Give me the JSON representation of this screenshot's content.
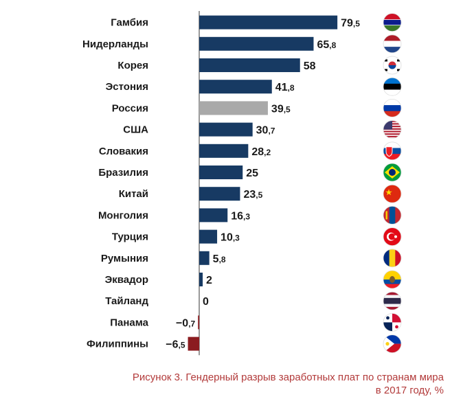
{
  "chart_data": {
    "type": "bar",
    "orientation": "horizontal",
    "categories": [
      "Гамбия",
      "Нидерланды",
      "Корея",
      "Эстония",
      "Россия",
      "США",
      "Словакия",
      "Бразилия",
      "Китай",
      "Монголия",
      "Турция",
      "Румыния",
      "Эквадор",
      "Тайланд",
      "Панама",
      "Филиппины"
    ],
    "values": [
      79.5,
      65.8,
      58,
      41.8,
      39.5,
      30.7,
      28.2,
      25,
      23.5,
      16.3,
      10.3,
      5.8,
      2,
      0,
      -0.7,
      -6.5
    ],
    "value_labels": [
      {
        "int": "79",
        "frac": ",5"
      },
      {
        "int": "65",
        "frac": ",8"
      },
      {
        "int": "58",
        "frac": ""
      },
      {
        "int": "41",
        "frac": ",8"
      },
      {
        "int": "39",
        "frac": ",5"
      },
      {
        "int": "30",
        "frac": ",7"
      },
      {
        "int": "28",
        "frac": ",2"
      },
      {
        "int": "25",
        "frac": ""
      },
      {
        "int": "23",
        "frac": ",5"
      },
      {
        "int": "16",
        "frac": ",3"
      },
      {
        "int": "10",
        "frac": ",3"
      },
      {
        "int": "5",
        "frac": ",8"
      },
      {
        "int": "2",
        "frac": ""
      },
      {
        "int": "0",
        "frac": ""
      },
      {
        "int": "−0",
        "frac": ",7"
      },
      {
        "int": "−6",
        "frac": ",5"
      }
    ],
    "flags": [
      "gambia-flag-icon",
      "netherlands-flag-icon",
      "korea-flag-icon",
      "estonia-flag-icon",
      "russia-flag-icon",
      "usa-flag-icon",
      "slovakia-flag-icon",
      "brazil-flag-icon",
      "china-flag-icon",
      "mongolia-flag-icon",
      "turkey-flag-icon",
      "romania-flag-icon",
      "ecuador-flag-icon",
      "thailand-flag-icon",
      "panama-flag-icon",
      "philippines-flag-icon"
    ],
    "highlight_category": "Россия",
    "colors": {
      "positive": "#173a63",
      "highlight": "#a9a9a9",
      "negative": "#8b1c20",
      "axis": "#333333"
    },
    "xlim": [
      -6.5,
      79.5
    ],
    "grid": false,
    "legend": "none"
  },
  "caption": {
    "line1": "Рисунок 3. Гендерный разрыв заработных плат по странам мира",
    "line2": "в 2017 году, %"
  }
}
